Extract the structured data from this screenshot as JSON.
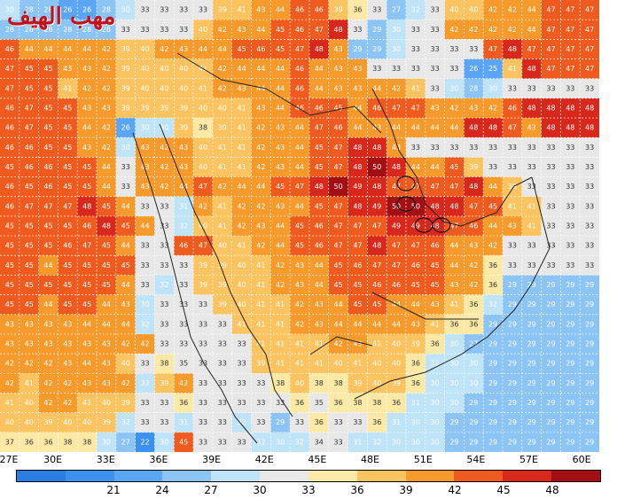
{
  "map": {
    "watermark_text": "مهب الهيف",
    "longitude_labels": [
      {
        "label": "27E",
        "lon": 27
      },
      {
        "label": "30E",
        "lon": 30
      },
      {
        "label": "33E",
        "lon": 33
      },
      {
        "label": "36E",
        "lon": 36
      },
      {
        "label": "39E",
        "lon": 39
      },
      {
        "label": "42E",
        "lon": 42
      },
      {
        "label": "45E",
        "lon": 45
      },
      {
        "label": "48E",
        "lon": 48
      },
      {
        "label": "51E",
        "lon": 51
      },
      {
        "label": "54E",
        "lon": 54
      },
      {
        "label": "57E",
        "lon": 57
      },
      {
        "label": "60E",
        "lon": 60
      }
    ],
    "lon_range": [
      27,
      61
    ],
    "grid": {
      "rows": 23,
      "cols": 31,
      "values": [
        [
          30,
          28,
          28,
          26,
          26,
          28,
          30,
          33,
          33,
          33,
          33,
          39,
          41,
          43,
          44,
          46,
          46,
          39,
          36,
          33,
          27,
          32,
          33,
          40,
          40,
          42,
          42,
          44,
          47,
          47,
          47
        ],
        [
          28,
          28,
          28,
          28,
          28,
          28,
          33,
          33,
          33,
          33,
          40,
          42,
          43,
          44,
          45,
          46,
          47,
          48,
          33,
          29,
          30,
          33,
          33,
          42,
          42,
          42,
          42,
          44,
          47,
          47,
          47
        ],
        [
          46,
          44,
          44,
          44,
          44,
          42,
          39,
          40,
          42,
          43,
          44,
          44,
          45,
          46,
          45,
          47,
          48,
          43,
          29,
          29,
          30,
          33,
          33,
          33,
          33,
          47,
          48,
          47,
          47,
          47,
          47
        ],
        [
          47,
          45,
          45,
          43,
          43,
          42,
          39,
          40,
          40,
          40,
          41,
          42,
          44,
          44,
          44,
          46,
          44,
          43,
          43,
          33,
          33,
          33,
          33,
          33,
          26,
          25,
          41,
          48,
          47,
          47,
          47
        ],
        [
          47,
          45,
          45,
          41,
          42,
          42,
          39,
          40,
          40,
          40,
          41,
          42,
          43,
          44,
          44,
          46,
          44,
          43,
          43,
          44,
          42,
          41,
          33,
          30,
          28,
          30,
          33,
          33,
          33,
          33,
          33
        ],
        [
          46,
          47,
          45,
          45,
          43,
          43,
          39,
          39,
          39,
          39,
          40,
          40,
          41,
          43,
          44,
          46,
          46,
          45,
          44,
          46,
          47,
          47,
          43,
          42,
          43,
          42,
          46,
          48,
          48,
          48,
          48
        ],
        [
          46,
          47,
          45,
          45,
          44,
          42,
          26,
          30,
          30,
          39,
          38,
          39,
          41,
          42,
          43,
          44,
          47,
          46,
          44,
          43,
          44,
          44,
          44,
          44,
          48,
          48,
          47,
          43,
          48,
          48,
          48
        ],
        [
          46,
          46,
          45,
          45,
          43,
          42,
          30,
          43,
          42,
          43,
          40,
          41,
          41,
          42,
          43,
          44,
          45,
          47,
          48,
          48,
          43,
          33,
          33,
          33,
          33,
          33,
          33,
          33,
          33,
          33,
          33
        ],
        [
          45,
          46,
          46,
          45,
          45,
          44,
          33,
          43,
          42,
          43,
          40,
          41,
          41,
          42,
          43,
          44,
          45,
          47,
          48,
          50,
          48,
          44,
          44,
          45,
          39,
          33,
          33,
          33,
          33,
          33,
          33
        ],
        [
          46,
          45,
          46,
          45,
          45,
          44,
          33,
          43,
          42,
          44,
          47,
          42,
          44,
          44,
          45,
          47,
          48,
          50,
          49,
          48,
          47,
          47,
          47,
          47,
          48,
          44,
          39,
          33,
          33,
          33,
          33
        ],
        [
          46,
          47,
          47,
          47,
          48,
          45,
          44,
          33,
          33,
          31,
          42,
          41,
          42,
          42,
          43,
          44,
          45,
          47,
          48,
          49,
          50,
          50,
          48,
          48,
          47,
          45,
          41,
          41,
          33,
          33,
          33
        ],
        [
          45,
          45,
          45,
          45,
          46,
          48,
          45,
          44,
          33,
          32,
          40,
          41,
          42,
          43,
          44,
          45,
          46,
          47,
          47,
          47,
          49,
          49,
          48,
          47,
          46,
          44,
          43,
          41,
          33,
          33,
          33
        ],
        [
          45,
          45,
          45,
          46,
          47,
          45,
          44,
          33,
          33,
          46,
          47,
          40,
          41,
          42,
          44,
          45,
          46,
          47,
          47,
          48,
          47,
          47,
          46,
          44,
          43,
          42,
          33,
          33,
          33,
          33,
          33
        ],
        [
          45,
          45,
          44,
          45,
          45,
          45,
          45,
          33,
          33,
          33,
          39,
          39,
          40,
          41,
          42,
          43,
          44,
          45,
          46,
          47,
          47,
          46,
          45,
          44,
          42,
          36,
          33,
          33,
          33,
          33,
          33
        ],
        [
          45,
          45,
          45,
          45,
          45,
          45,
          44,
          33,
          32,
          33,
          39,
          39,
          40,
          41,
          42,
          43,
          44,
          45,
          45,
          46,
          46,
          45,
          45,
          43,
          42,
          36,
          29,
          29,
          29,
          29,
          29
        ],
        [
          45,
          45,
          44,
          45,
          45,
          44,
          43,
          30,
          33,
          33,
          33,
          39,
          40,
          41,
          41,
          42,
          43,
          44,
          45,
          45,
          44,
          44,
          43,
          41,
          36,
          32,
          29,
          29,
          29,
          29,
          29
        ],
        [
          43,
          43,
          43,
          43,
          44,
          44,
          44,
          32,
          33,
          33,
          33,
          33,
          41,
          41,
          41,
          42,
          43,
          44,
          44,
          44,
          44,
          43,
          41,
          36,
          36,
          29,
          29,
          29,
          29,
          29,
          29
        ],
        [
          43,
          43,
          43,
          43,
          43,
          43,
          42,
          42,
          33,
          33,
          33,
          33,
          33,
          41,
          41,
          41,
          41,
          42,
          43,
          41,
          40,
          39,
          36,
          30,
          27,
          29,
          29,
          29,
          29,
          29,
          29
        ],
        [
          42,
          42,
          42,
          43,
          44,
          43,
          40,
          33,
          38,
          35,
          33,
          33,
          33,
          39,
          41,
          41,
          41,
          40,
          41,
          40,
          40,
          36,
          32,
          30,
          30,
          29,
          29,
          29,
          29,
          29,
          29
        ],
        [
          42,
          41,
          42,
          42,
          43,
          43,
          42,
          32,
          39,
          42,
          33,
          33,
          33,
          33,
          38,
          40,
          38,
          38,
          39,
          40,
          39,
          36,
          30,
          30,
          30,
          29,
          29,
          29,
          29,
          29,
          29
        ],
        [
          41,
          40,
          42,
          42,
          41,
          40,
          39,
          33,
          33,
          36,
          33,
          33,
          33,
          33,
          33,
          36,
          35,
          36,
          38,
          38,
          36,
          31,
          30,
          30,
          29,
          29,
          29,
          29,
          29,
          29,
          29
        ],
        [
          40,
          40,
          39,
          40,
          40,
          39,
          32,
          33,
          33,
          31,
          33,
          33,
          32,
          33,
          29,
          33,
          36,
          33,
          33,
          36,
          31,
          30,
          30,
          29,
          29,
          29,
          29,
          29,
          29,
          29,
          29
        ],
        [
          37,
          36,
          36,
          38,
          38,
          30,
          27,
          22,
          30,
          45,
          33,
          33,
          33,
          32,
          30,
          32,
          34,
          33,
          31,
          32,
          30,
          30,
          30,
          29,
          29,
          29,
          29,
          29,
          29,
          29,
          29
        ]
      ]
    }
  },
  "legend": {
    "ticks": [
      "21",
      "24",
      "27",
      "30",
      "33",
      "36",
      "39",
      "42",
      "45",
      "48"
    ],
    "colors": [
      "#2a7de1",
      "#3c91ee",
      "#5aa6f4",
      "#8cc4f6",
      "#bfe3f7",
      "#e8e8e8",
      "#fde9a6",
      "#fcc460",
      "#f59a2b",
      "#ef5b1e",
      "#d8281c",
      "#a40f13"
    ]
  }
}
